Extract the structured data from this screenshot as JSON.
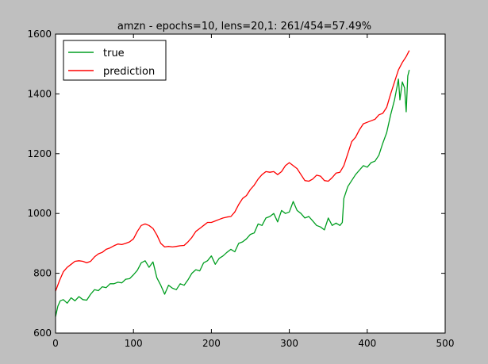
{
  "chart_data": {
    "type": "line",
    "title": "amzn - epochs=10, lens=20,1: 261/454=57.49%",
    "xlabel": "",
    "ylabel": "",
    "xlim": [
      0,
      500
    ],
    "ylim": [
      600,
      1600
    ],
    "xticks": [
      0,
      100,
      200,
      300,
      400,
      500
    ],
    "yticks": [
      600,
      800,
      1000,
      1200,
      1400,
      1600
    ],
    "xtick_labels": [
      "0",
      "100",
      "200",
      "300",
      "400",
      "500"
    ],
    "ytick_labels": [
      "600",
      "800",
      "1000",
      "1200",
      "1400",
      "1600"
    ],
    "grid": false,
    "legend": {
      "placement": "top-left"
    },
    "series": [
      {
        "name": "true",
        "color": "#009e20",
        "x": [
          0,
          3,
          6,
          10,
          15,
          20,
          25,
          30,
          35,
          40,
          45,
          50,
          55,
          60,
          65,
          70,
          75,
          80,
          85,
          90,
          95,
          100,
          105,
          110,
          115,
          120,
          125,
          130,
          135,
          140,
          145,
          150,
          155,
          160,
          165,
          170,
          175,
          180,
          185,
          190,
          195,
          200,
          205,
          210,
          215,
          220,
          225,
          230,
          235,
          240,
          245,
          250,
          255,
          260,
          265,
          270,
          275,
          280,
          285,
          290,
          295,
          300,
          305,
          310,
          315,
          320,
          325,
          330,
          335,
          340,
          345,
          350,
          355,
          360,
          365,
          368,
          370,
          375,
          380,
          385,
          390,
          395,
          400,
          405,
          410,
          415,
          420,
          425,
          430,
          435,
          438,
          440,
          442,
          445,
          448,
          450,
          452,
          454
        ],
        "values": [
          655,
          690,
          708,
          712,
          700,
          718,
          708,
          722,
          712,
          710,
          730,
          745,
          742,
          755,
          752,
          765,
          765,
          770,
          768,
          780,
          782,
          795,
          810,
          835,
          842,
          820,
          838,
          785,
          760,
          730,
          760,
          750,
          745,
          765,
          760,
          778,
          800,
          812,
          808,
          835,
          842,
          858,
          830,
          850,
          858,
          870,
          880,
          872,
          900,
          905,
          915,
          930,
          935,
          965,
          960,
          985,
          990,
          1000,
          972,
          1010,
          1000,
          1005,
          1040,
          1010,
          1000,
          985,
          990,
          975,
          960,
          955,
          945,
          985,
          960,
          968,
          960,
          970,
          1050,
          1090,
          1110,
          1130,
          1145,
          1160,
          1155,
          1170,
          1175,
          1195,
          1235,
          1270,
          1330,
          1380,
          1420,
          1450,
          1380,
          1440,
          1420,
          1340,
          1460,
          1480
        ]
      },
      {
        "name": "prediction",
        "color": "#ff0000",
        "x": [
          0,
          5,
          10,
          15,
          20,
          25,
          30,
          35,
          40,
          45,
          50,
          55,
          60,
          65,
          70,
          75,
          80,
          85,
          90,
          95,
          100,
          105,
          110,
          115,
          120,
          125,
          130,
          135,
          140,
          145,
          150,
          155,
          160,
          165,
          170,
          175,
          180,
          185,
          190,
          195,
          200,
          205,
          210,
          215,
          220,
          225,
          230,
          235,
          240,
          245,
          250,
          255,
          260,
          265,
          270,
          275,
          280,
          285,
          290,
          295,
          300,
          305,
          310,
          315,
          320,
          325,
          330,
          335,
          340,
          345,
          350,
          355,
          360,
          365,
          370,
          375,
          380,
          385,
          390,
          395,
          400,
          405,
          410,
          415,
          420,
          425,
          430,
          435,
          440,
          445,
          450,
          454
        ],
        "values": [
          740,
          775,
          805,
          820,
          830,
          840,
          842,
          840,
          835,
          840,
          855,
          865,
          870,
          880,
          885,
          892,
          898,
          896,
          900,
          905,
          915,
          940,
          960,
          965,
          960,
          950,
          928,
          900,
          888,
          890,
          888,
          890,
          892,
          893,
          905,
          920,
          940,
          950,
          960,
          970,
          970,
          975,
          980,
          985,
          988,
          990,
          1005,
          1030,
          1050,
          1060,
          1080,
          1095,
          1115,
          1130,
          1140,
          1138,
          1140,
          1130,
          1140,
          1160,
          1170,
          1160,
          1150,
          1130,
          1110,
          1108,
          1115,
          1128,
          1125,
          1110,
          1108,
          1120,
          1135,
          1138,
          1160,
          1200,
          1240,
          1255,
          1280,
          1300,
          1305,
          1310,
          1315,
          1330,
          1335,
          1355,
          1400,
          1440,
          1480,
          1505,
          1525,
          1545
        ]
      }
    ]
  }
}
